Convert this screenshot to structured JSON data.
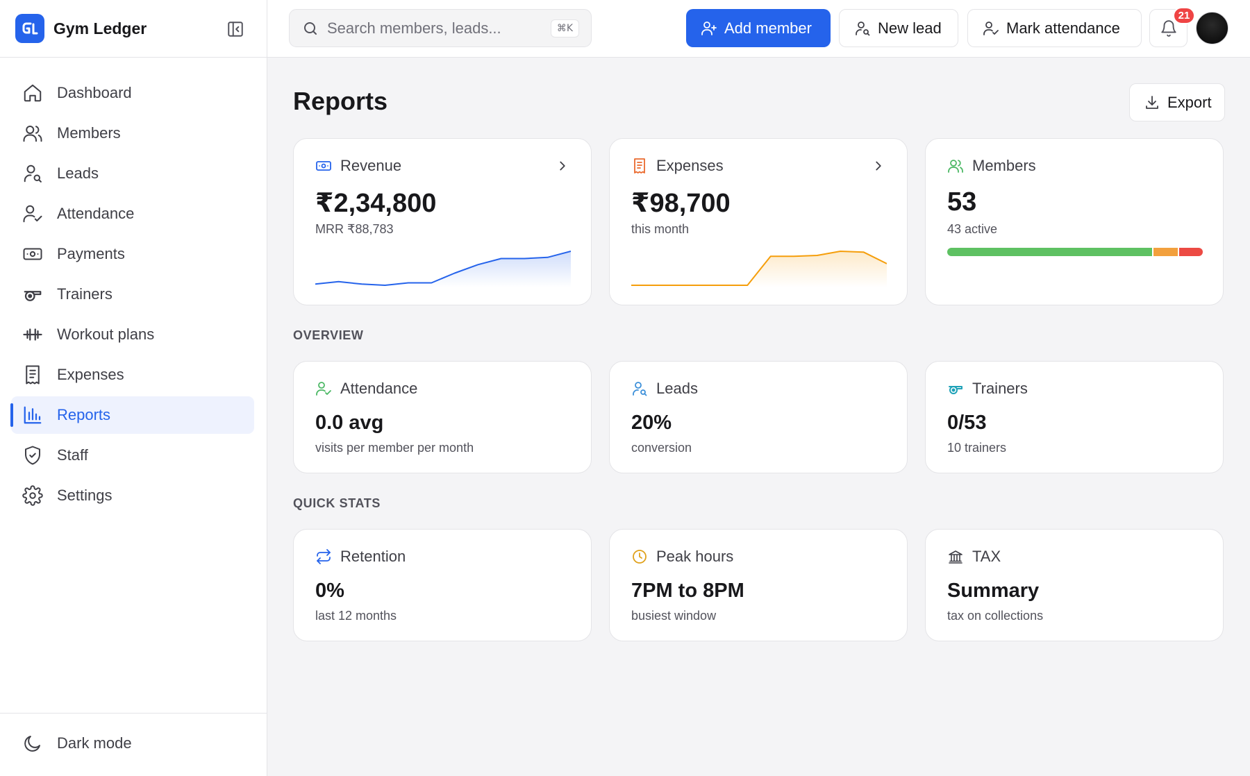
{
  "app": {
    "name": "Gym Ledger"
  },
  "sidebar": {
    "items": [
      {
        "label": "Dashboard",
        "icon": "home-icon"
      },
      {
        "label": "Members",
        "icon": "users-icon"
      },
      {
        "label": "Leads",
        "icon": "user-search-icon"
      },
      {
        "label": "Attendance",
        "icon": "user-check-icon"
      },
      {
        "label": "Payments",
        "icon": "banknote-icon"
      },
      {
        "label": "Trainers",
        "icon": "whistle-icon"
      },
      {
        "label": "Workout plans",
        "icon": "dumbbell-icon"
      },
      {
        "label": "Expenses",
        "icon": "receipt-icon"
      },
      {
        "label": "Reports",
        "icon": "bar-chart-icon",
        "active": true
      },
      {
        "label": "Staff",
        "icon": "shield-check-icon"
      },
      {
        "label": "Settings",
        "icon": "gear-icon"
      }
    ],
    "footer": {
      "dark_mode_label": "Dark mode"
    }
  },
  "topbar": {
    "search": {
      "placeholder": "Search members, leads...",
      "shortcut": "⌘K"
    },
    "add_member_label": "Add member",
    "new_lead_label": "New lead",
    "mark_attendance_label": "Mark attendance",
    "notifications_count": "21"
  },
  "page": {
    "title": "Reports",
    "export_label": "Export"
  },
  "summary_cards": {
    "revenue": {
      "label": "Revenue",
      "value": "₹2,34,800",
      "sub": "MRR ₹88,783",
      "color": "#2563eb",
      "trend": [
        0,
        2,
        0,
        -1,
        1,
        1,
        9,
        16,
        21,
        21,
        22,
        27
      ]
    },
    "expenses": {
      "label": "Expenses",
      "value": "₹98,700",
      "sub": "this month",
      "color": "#f59e0b",
      "trend": [
        0,
        0,
        0,
        0,
        0,
        0,
        35,
        35,
        36,
        41,
        40,
        26
      ]
    },
    "members": {
      "label": "Members",
      "value": "53",
      "sub": "43 active",
      "breakdown": [
        {
          "count": 43,
          "color": "#5ec162"
        },
        {
          "count": 5,
          "color": "#f2a03d"
        },
        {
          "count": 5,
          "color": "#ec4a43"
        }
      ]
    }
  },
  "sections": {
    "overview": "OVERVIEW",
    "quick_stats": "QUICK STATS"
  },
  "overview_cards": {
    "attendance": {
      "label": "Attendance",
      "value": "0.0 avg",
      "sub": "visits per member per month"
    },
    "leads": {
      "label": "Leads",
      "value": "20%",
      "sub": "conversion"
    },
    "trainers": {
      "label": "Trainers",
      "value": "0/53",
      "sub": "10 trainers"
    }
  },
  "quick_cards": {
    "retention": {
      "label": "Retention",
      "value": "0%",
      "sub": "last 12 months"
    },
    "peak_hours": {
      "label": "Peak hours",
      "value": "7PM to 8PM",
      "sub": "busiest window"
    },
    "tax": {
      "label": "TAX",
      "value": "Summary",
      "sub": "tax on collections"
    }
  }
}
